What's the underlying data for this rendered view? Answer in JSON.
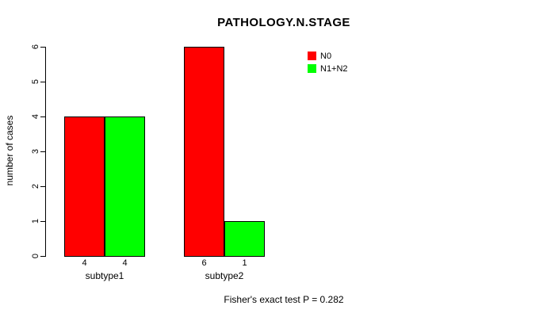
{
  "chart_data": {
    "type": "bar",
    "title": "PATHOLOGY.N.STAGE",
    "ylabel": "number of cases",
    "xlabel": "",
    "categories": [
      "subtype1",
      "subtype2"
    ],
    "series": [
      {
        "name": "N0",
        "color": "#ff0000",
        "values": [
          4,
          6
        ]
      },
      {
        "name": "N1+N2",
        "color": "#00ff00",
        "values": [
          4,
          1
        ]
      }
    ],
    "bar_count_labels": [
      [
        "4",
        "4"
      ],
      [
        "6",
        "1"
      ]
    ],
    "yticks": [
      0,
      1,
      2,
      3,
      4,
      5,
      6
    ],
    "ylim": [
      0,
      6
    ],
    "grid": false,
    "legend_position": "top-right",
    "footer": "Fisher's exact test P = 0.282"
  }
}
